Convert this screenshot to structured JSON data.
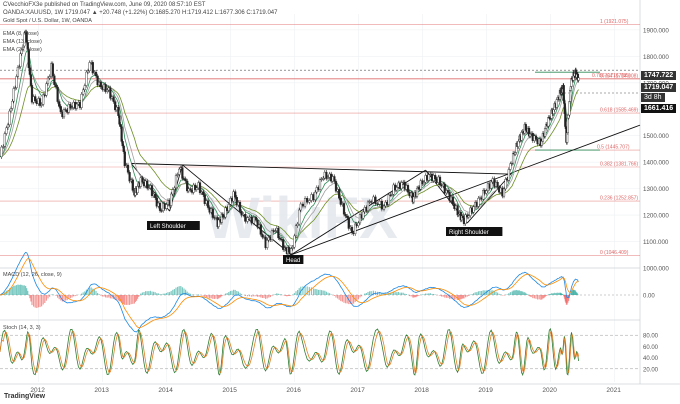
{
  "header": {
    "attribution": "CVecchioFX3e published on TradingView.com, June 09, 2020 08:57:10 EST",
    "symbol_line": "OANDA:XAUUSD, 1W 1719.047 ▲ +20.748 (+1.22%) O:1685.270 H:1719.412 L:1677.306 C:1719.047",
    "title": "Gold Spot / U.S. Dollar, 1W, OANDA",
    "ema1": "EMA (8, close)",
    "ema2": "EMA (13, close)",
    "ema3": "EMA (26, close)"
  },
  "price_labels": {
    "p1": "1747.722",
    "p2": "1719.047",
    "p3": "3d 8h",
    "p4": "1661.416"
  },
  "fib_labels": [
    "1 (1921.075)",
    "0.786 (1716.785)",
    "0.764 (1714.008)",
    "0.618 (1585.469)",
    "0.5 (1445.707)",
    "0.382 (1381.766)",
    "0.236 (1252.857)",
    "0 (1046.409)"
  ],
  "pattern_labels": {
    "left": "Left Shoulder",
    "head": "Head",
    "right": "Right Shoulder"
  },
  "macd_label": "MACD (12, 26, close, 9)",
  "slow_label": "Stoch (14, 3, 3)",
  "brand": "TradingView",
  "watermark": "WikiFX",
  "colors": {
    "price_line": "#222222",
    "ema_fast": "#2e8b57",
    "ema_mid": "#a0a0a0",
    "ema_slow": "#6b8e23",
    "fib": "#e06666",
    "macd": "#1e88e5",
    "signal": "#ff8c00",
    "stoch_k": "#2e7d32",
    "stoch_d": "#e67e22"
  },
  "chart_data": {
    "type": "line",
    "title": "Gold Spot / U.S. Dollar, 1W, OANDA",
    "x_tick_labels": [
      "2012",
      "2013",
      "2014",
      "2015",
      "2016",
      "2017",
      "2018",
      "2019",
      "2020",
      "2021"
    ],
    "x_ticks_year": [
      2012,
      2013,
      2014,
      2015,
      2016,
      2017,
      2018,
      2019,
      2020,
      2021
    ],
    "y_tick_labels": [
      "1900.000",
      "1800.000",
      "1700.000",
      "1600.000",
      "1500.000",
      "1400.000",
      "1300.000",
      "1200.000",
      "1100.000",
      "1000.000"
    ],
    "ylim": [
      1000,
      1960
    ],
    "xlim": [
      2011.4,
      2021.4
    ],
    "price": {
      "x": [
        2011.4,
        2011.55,
        2011.68,
        2011.8,
        2011.9,
        2012.05,
        2012.2,
        2012.35,
        2012.5,
        2012.65,
        2012.8,
        2012.95,
        2013.1,
        2013.25,
        2013.35,
        2013.5,
        2013.6,
        2013.75,
        2013.9,
        2014.05,
        2014.2,
        2014.35,
        2014.5,
        2014.65,
        2014.8,
        2014.9,
        2015.05,
        2015.2,
        2015.4,
        2015.55,
        2015.7,
        2015.85,
        2015.95,
        2016.1,
        2016.3,
        2016.45,
        2016.6,
        2016.75,
        2016.9,
        2017.05,
        2017.2,
        2017.4,
        2017.55,
        2017.7,
        2017.85,
        2017.95,
        2018.1,
        2018.25,
        2018.4,
        2018.55,
        2018.65,
        2018.8,
        2018.95,
        2019.1,
        2019.25,
        2019.4,
        2019.5,
        2019.6,
        2019.7,
        2019.85,
        2019.95,
        2020.05,
        2020.15,
        2020.2,
        2020.25,
        2020.32,
        2020.38,
        2020.44
      ],
      "y": [
        1420,
        1580,
        1750,
        1900,
        1640,
        1620,
        1760,
        1580,
        1610,
        1620,
        1780,
        1690,
        1670,
        1580,
        1400,
        1280,
        1330,
        1300,
        1220,
        1250,
        1380,
        1290,
        1310,
        1230,
        1170,
        1200,
        1280,
        1190,
        1180,
        1090,
        1150,
        1070,
        1060,
        1240,
        1270,
        1350,
        1340,
        1230,
        1130,
        1200,
        1260,
        1230,
        1300,
        1320,
        1260,
        1310,
        1350,
        1330,
        1280,
        1210,
        1180,
        1230,
        1280,
        1330,
        1280,
        1410,
        1480,
        1530,
        1500,
        1470,
        1550,
        1600,
        1660,
        1680,
        1480,
        1700,
        1740,
        1719
      ]
    },
    "fib_levels": [
      1921.075,
      1716.785,
      1714.008,
      1585.469,
      1445.707,
      1381.766,
      1252.857,
      1046.409
    ],
    "macd_ylim": [
      -60,
      60
    ],
    "stoch_ylim": [
      0,
      100
    ],
    "stoch_ticks": [
      "80.00",
      "60.00",
      "40.00",
      "20.00"
    ],
    "macd_ticks": [
      "0.00"
    ],
    "macd_tick_values": [
      0
    ],
    "stoch_tick_values": [
      80,
      60,
      40,
      20
    ],
    "xlabel": "",
    "ylabel": "",
    "grid": true
  }
}
